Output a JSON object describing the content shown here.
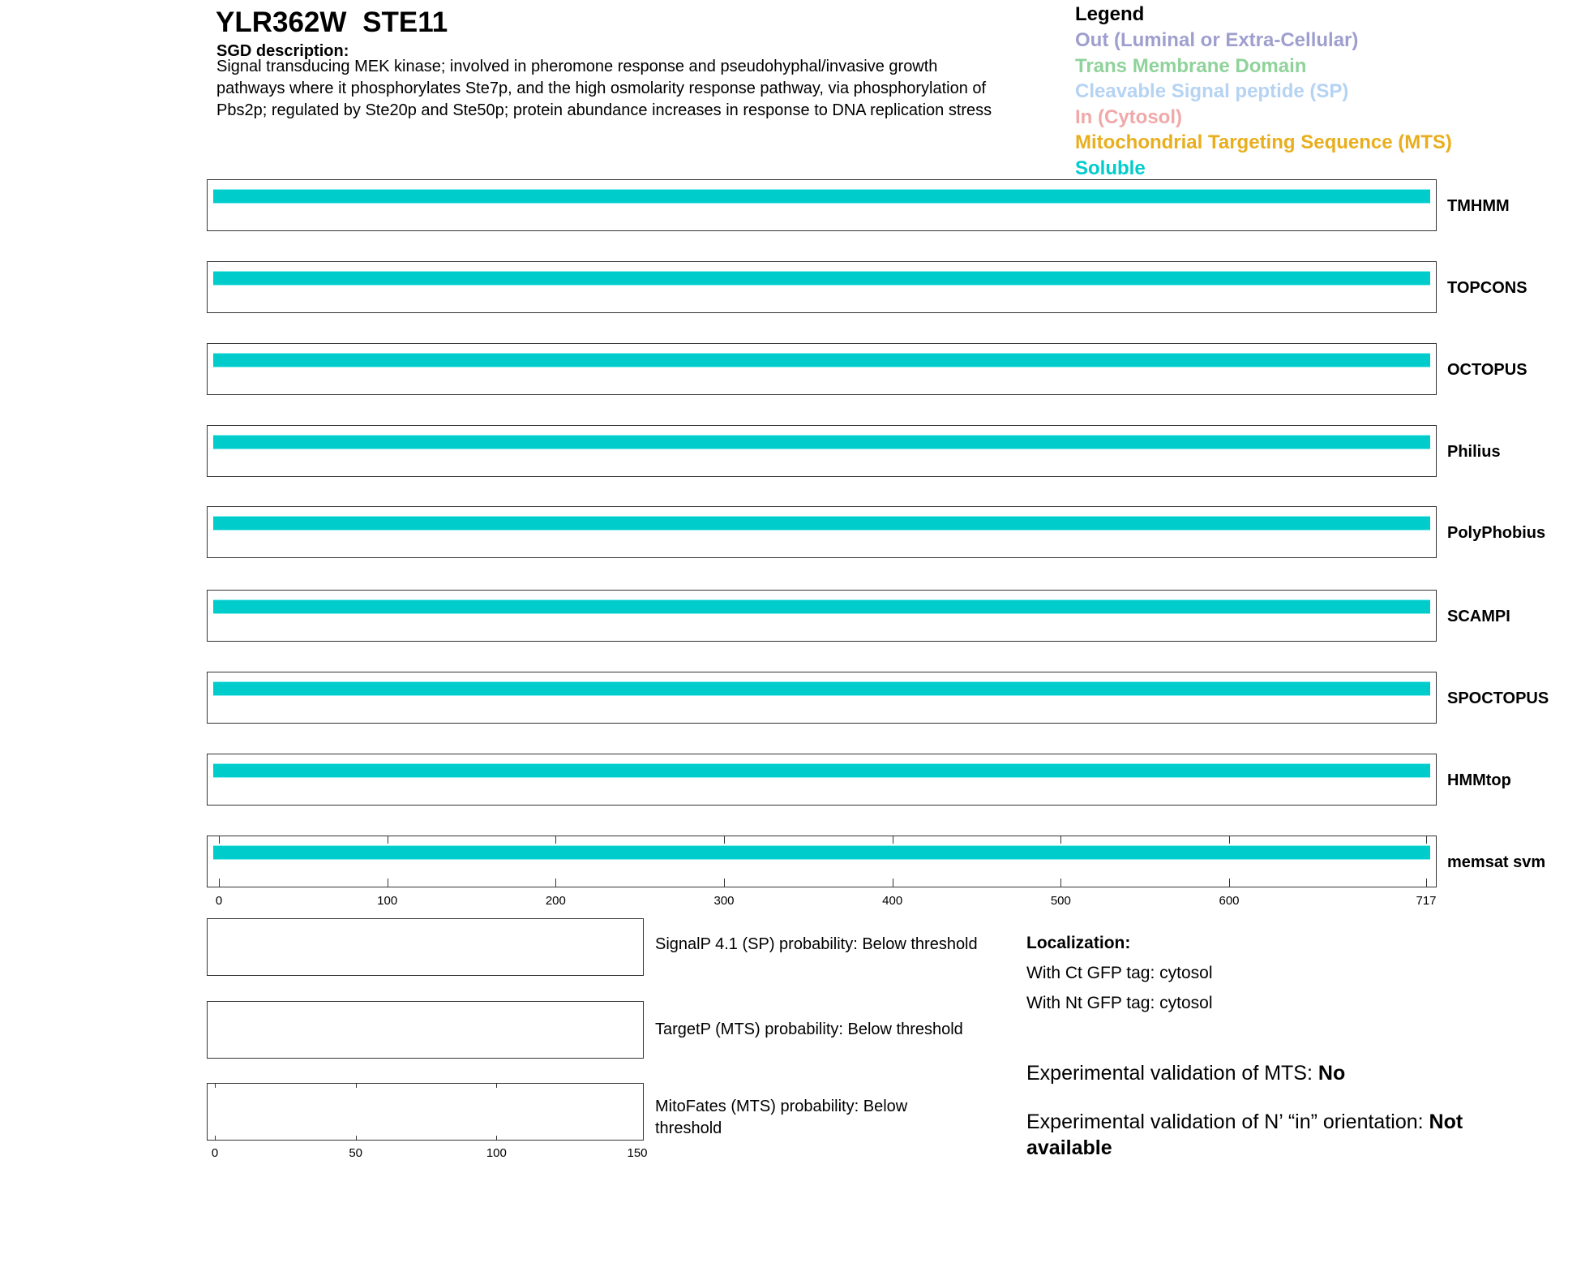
{
  "header": {
    "title": "YLR362W  STE11",
    "sgd_label": "SGD description:",
    "description_lines": [
      "Signal transducing MEK kinase; involved in pheromone response and pseudohyphal/invasive growth",
      "pathways where it phosphorylates Ste7p, and the high osmolarity response pathway, via phosphorylation of",
      "Pbs2p; regulated by Ste20p and Ste50p; protein abundance increases in response to DNA replication stress"
    ]
  },
  "legend": {
    "title": "Legend",
    "items": [
      {
        "label": "Out (Luminal or Extra-Cellular)",
        "color": "#9f9fcf"
      },
      {
        "label": "Trans Membrane Domain",
        "color": "#8fd39a"
      },
      {
        "label": "Cleavable Signal peptide (SP)",
        "color": "#b5d3f3"
      },
      {
        "label": "In (Cytosol)",
        "color": "#f0a8a8"
      },
      {
        "label": "Mitochondrial Targeting Sequence (MTS)",
        "color": "#e8ae1e"
      },
      {
        "label": "Soluble",
        "color": "#00cccc"
      }
    ]
  },
  "chart_data": {
    "type": "bar",
    "xlim": [
      0,
      717
    ],
    "xticks": [
      "0",
      "100",
      "200",
      "300",
      "400",
      "500",
      "600",
      "717"
    ],
    "tracks": [
      {
        "name": "TMHMM",
        "segments": [
          {
            "start": 1,
            "end": 717,
            "type": "Soluble"
          }
        ]
      },
      {
        "name": "TOPCONS",
        "segments": [
          {
            "start": 1,
            "end": 717,
            "type": "Soluble"
          }
        ]
      },
      {
        "name": "OCTOPUS",
        "segments": [
          {
            "start": 1,
            "end": 717,
            "type": "Soluble"
          }
        ]
      },
      {
        "name": "Philius",
        "segments": [
          {
            "start": 1,
            "end": 717,
            "type": "Soluble"
          }
        ]
      },
      {
        "name": "PolyPhobius",
        "segments": [
          {
            "start": 1,
            "end": 717,
            "type": "Soluble"
          }
        ]
      },
      {
        "name": "SCAMPI",
        "segments": [
          {
            "start": 1,
            "end": 717,
            "type": "Soluble"
          }
        ]
      },
      {
        "name": "SPOCTOPUS",
        "segments": [
          {
            "start": 1,
            "end": 717,
            "type": "Soluble"
          }
        ]
      },
      {
        "name": "HMMtop",
        "segments": [
          {
            "start": 1,
            "end": 717,
            "type": "Soluble"
          }
        ]
      },
      {
        "name": "memsat svm",
        "segments": [
          {
            "start": 1,
            "end": 717,
            "type": "Soluble"
          }
        ]
      }
    ],
    "probability_xlim": [
      0,
      150
    ],
    "probability_xticks": [
      "0",
      "50",
      "100",
      "150"
    ]
  },
  "predictions": {
    "signalp": "SignalP 4.1 (SP) probability: Below threshold",
    "targetp": "TargetP (MTS) probability: Below threshold",
    "mitofates_1": "MitoFates (MTS) probability: Below",
    "mitofates_2": "threshold"
  },
  "localization": {
    "title": "Localization:",
    "ct": "With Ct GFP tag: cytosol",
    "nt": "With Nt GFP tag: cytosol",
    "mts_label": "Experimental validation of MTS: ",
    "mts_value": "No",
    "orient_label": "Experimental validation of N’ “in” orientation: ",
    "orient_value_1": "Not",
    "orient_value_2": "available"
  }
}
